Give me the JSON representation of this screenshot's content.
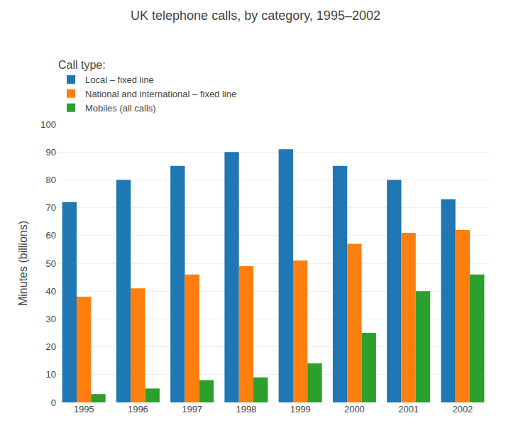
{
  "chart_data": {
    "type": "bar",
    "title": "UK telephone calls, by category, 1995–2002",
    "ylabel": "Minutes (billions)",
    "categories": [
      "1995",
      "1996",
      "1997",
      "1998",
      "1999",
      "2000",
      "2001",
      "2002"
    ],
    "series": [
      {
        "name": "Local – fixed line",
        "values": [
          72,
          80,
          85,
          90,
          91,
          85,
          80,
          73
        ]
      },
      {
        "name": "National and international – fixed line",
        "values": [
          38,
          41,
          46,
          49,
          51,
          57,
          61,
          62
        ]
      },
      {
        "name": "Mobiles (all calls)",
        "values": [
          3,
          5,
          8,
          9,
          14,
          25,
          40,
          46
        ]
      }
    ],
    "ylim": [
      0,
      100
    ],
    "yticks": [
      0,
      10,
      20,
      30,
      40,
      50,
      60,
      70,
      80,
      90,
      100
    ],
    "grid": true,
    "legend": "top",
    "legend_title": "Call type:"
  }
}
